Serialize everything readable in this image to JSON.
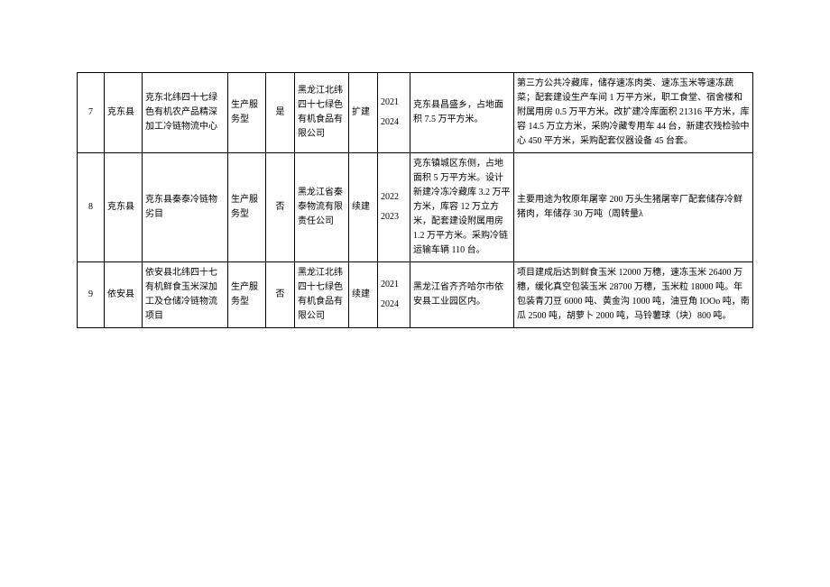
{
  "table": {
    "rows": [
      {
        "num": "7",
        "county": "克东县",
        "project": "克东北纬四十七绿色有机农产品精深加工冷链物流中心",
        "type": "生产服务型",
        "yn": "是",
        "company": "黑龙江北纬四十七绿色有机食品有限公司",
        "build": "扩建",
        "year_start": "2021",
        "year_end": "2024",
        "location": "克东县昌盛乡，占地面积 7.5 万平方米。",
        "desc": "第三方公共冷藏库，储存速冻肉类、速冻玉米等速冻蔬菜；配套建设生产车间 1 万平方米，职工食堂、宿舍楼和附属用房 0.5 万平方米。改扩建冷库面积 21316 平方米，库容 14.5 万立方米，采购冷藏专用车 44 台，新建农残检验中心 450 平方米，采购配套仪器设备 45 台套。"
      },
      {
        "num": "8",
        "county": "克东县",
        "project": "克东县秦泰冷链物劣目",
        "type": "生产服务型",
        "yn": "否",
        "company": "黑龙江省秦泰物流有限责任公司",
        "build": "续建",
        "year_start": "2022",
        "year_end": "2023",
        "location": "克东镇城区东侧，占地面积 5 万平方米。设计新建冷冻冷藏库 3.2 万平方米，库容 12 万立方米，配套建设附属用房 1.2 万平方米。采购冷链运输车辆 110 台。",
        "desc": "主要用途为牧原年屠宰 200 万头生猪屠宰厂配套储存冷鲜猪肉，年储存 30 万吨（周转量λ"
      },
      {
        "num": "9",
        "county": "依安县",
        "project": "依安县北纬四十七有机鲜食玉米深加工及仓储冷链物流项目",
        "type": "生产服务型",
        "yn": "否",
        "company": "黑龙江北纬四十七绿色有机食品有限公司",
        "build": "续建",
        "year_start": "2021",
        "year_end": "2024",
        "location": "黑龙江省齐齐哈尔市依安县工业园区内。",
        "desc": "项目建成后达到鲜食玉米 12000 万穗，速冻玉米 26400 万穗，缓化真空包装玉米 28700 万穗，玉米粒 18000 吨。年包装青刀豆 6000 吨、黄金沟 1000 吨，油豆角 IOOo 吨，南瓜 2500 吨，胡萝卜 2000 吨，马铃薯球（块）800 吨。"
      }
    ]
  }
}
